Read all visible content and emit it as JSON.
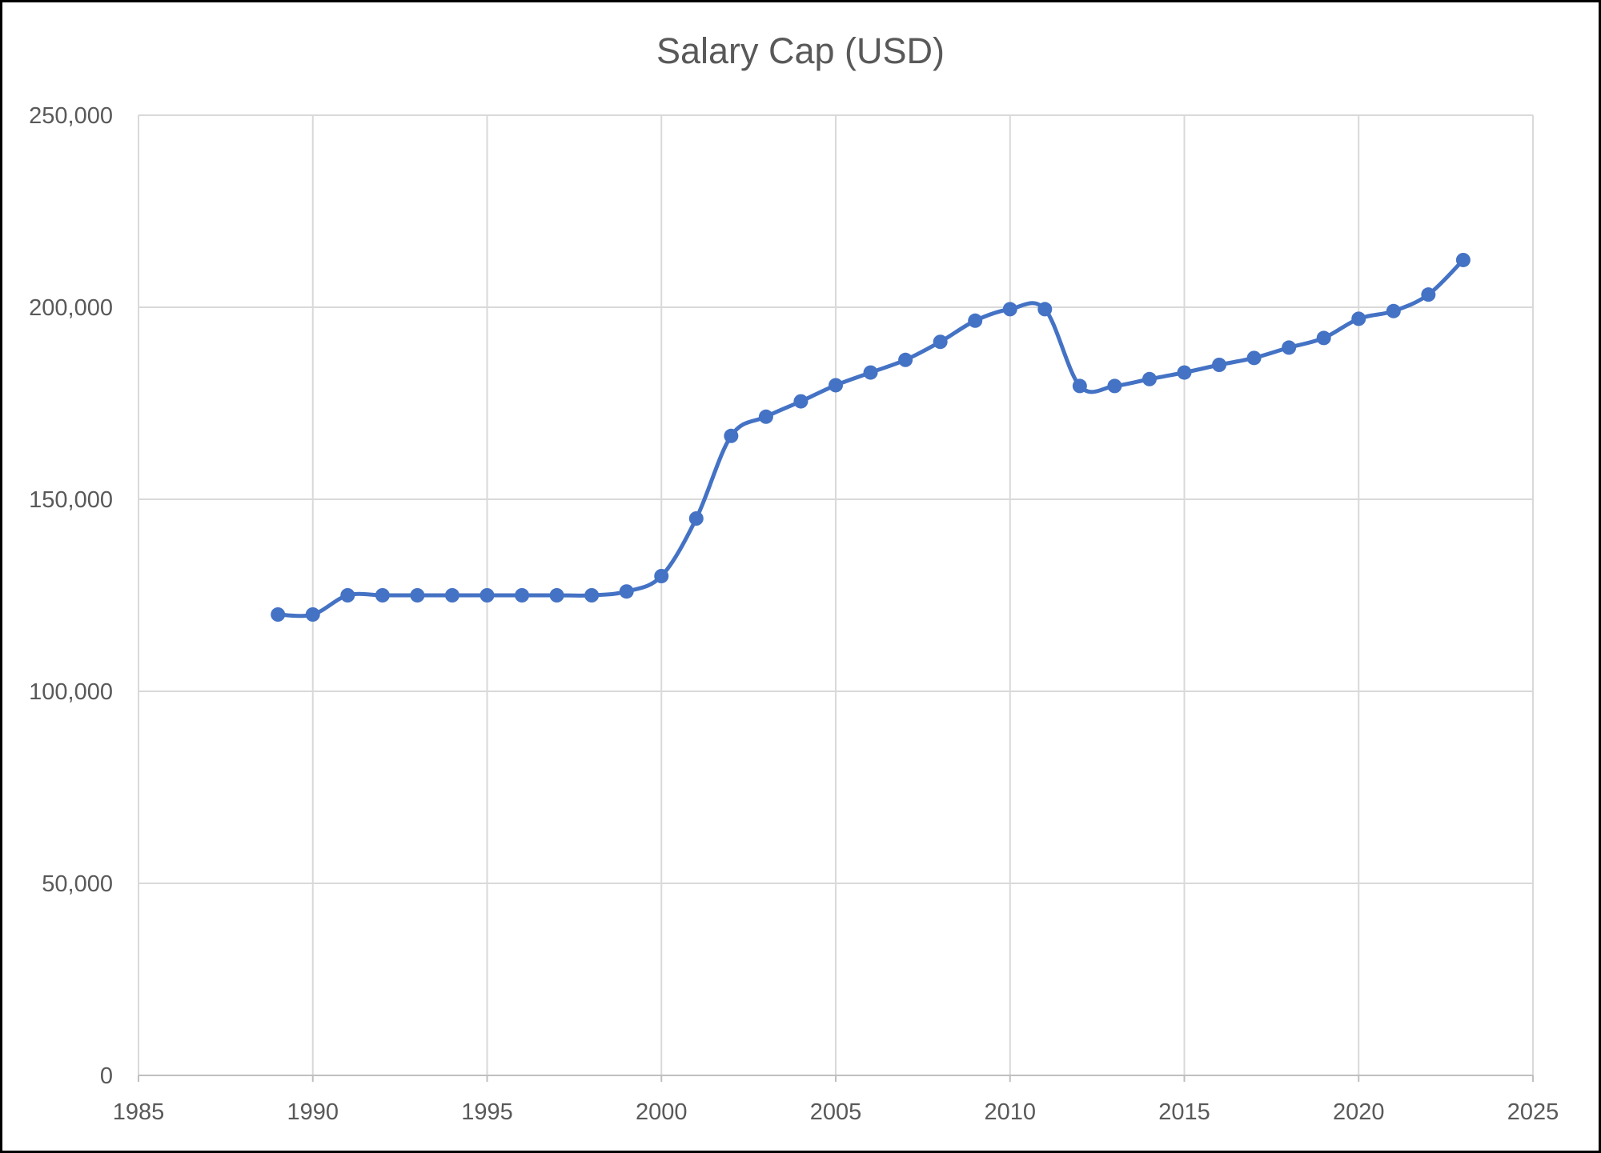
{
  "chart_data": {
    "type": "line",
    "title": "Salary Cap (USD)",
    "xlabel": "",
    "ylabel": "",
    "xlim": [
      1985,
      2025
    ],
    "ylim": [
      0,
      250000
    ],
    "xticks": [
      1985,
      1990,
      1995,
      2000,
      2005,
      2010,
      2015,
      2020,
      2025
    ],
    "xtick_labels": [
      "1985",
      "1990",
      "1995",
      "2000",
      "2005",
      "2010",
      "2015",
      "2020",
      "2025"
    ],
    "yticks": [
      0,
      50000,
      100000,
      150000,
      200000,
      250000
    ],
    "ytick_labels": [
      "0",
      "50,000",
      "100,000",
      "150,000",
      "200,000",
      "250,000"
    ],
    "grid": true,
    "smooth": true,
    "color": "#4472C4",
    "series": [
      {
        "name": "Salary Cap (USD)",
        "x": [
          1989,
          1990,
          1991,
          1992,
          1993,
          1994,
          1995,
          1996,
          1997,
          1998,
          1999,
          2000,
          2001,
          2002,
          2003,
          2004,
          2005,
          2006,
          2007,
          2008,
          2009,
          2010,
          2011,
          2012,
          2013,
          2014,
          2015,
          2016,
          2017,
          2018,
          2019,
          2020,
          2021,
          2022,
          2023
        ],
        "values": [
          120000,
          120000,
          125000,
          125000,
          125000,
          125000,
          125000,
          125000,
          125000,
          125000,
          126000,
          130000,
          145000,
          166500,
          171500,
          175500,
          179700,
          183000,
          186300,
          191000,
          196500,
          199500,
          199500,
          179500,
          179500,
          181300,
          183000,
          185000,
          186800,
          189500,
          192000,
          197000,
          199000,
          203300,
          212300
        ]
      }
    ]
  }
}
